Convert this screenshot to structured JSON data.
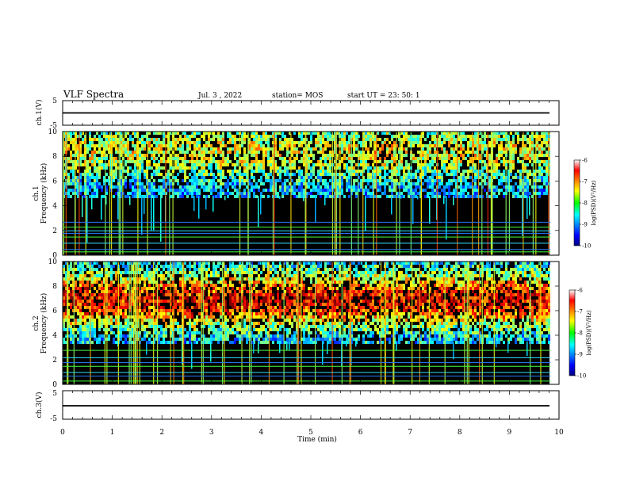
{
  "header": {
    "title": "VLF Spectra",
    "date": "Jul. 3 , 2022",
    "station": "station= MOS",
    "start": "start UT = 23: 50: 1"
  },
  "chart_data": [
    {
      "type": "line",
      "name": "ch1-waveform",
      "ylabel": "ch.1(V)",
      "ylim": [
        -5,
        5
      ],
      "yticks": [
        "5",
        "-5"
      ],
      "baseline": 0
    },
    {
      "type": "heatmap",
      "name": "ch1-spectrogram",
      "ylabel": "ch.1",
      "ylabel2": "Frequency (kHz)",
      "ylim": [
        0,
        10
      ],
      "yticks": [
        "0",
        "2",
        "4",
        "6",
        "8",
        "10"
      ],
      "colorbar": {
        "label": "log(PSD)(V²/Hz)",
        "ticks": [
          "-6",
          "-7",
          "-8",
          "-9",
          "-10"
        ],
        "range": [
          -10,
          -6
        ]
      },
      "dominant_band_khz": [
        5,
        10
      ],
      "narrowband_lines_khz": [
        0.3,
        0.5,
        1.0,
        1.5,
        1.8,
        2.0,
        2.3,
        2.7
      ]
    },
    {
      "type": "heatmap",
      "name": "ch2-spectrogram",
      "ylabel": "ch.2",
      "ylabel2": "Frequency (kHz)",
      "ylim": [
        0,
        10
      ],
      "yticks": [
        "0",
        "2",
        "4",
        "6",
        "8",
        "10"
      ],
      "colorbar": {
        "label": "log(PSD)(V²/Hz)",
        "ticks": [
          "-6",
          "-7",
          "-8",
          "-9",
          "-10"
        ],
        "range": [
          -10,
          -6
        ]
      },
      "dominant_band_khz": [
        4,
        10
      ],
      "peak_band_khz": [
        6,
        8
      ],
      "narrowband_lines_khz": [
        0.3,
        0.7,
        1.0,
        1.5,
        1.8,
        2.2,
        2.8
      ]
    },
    {
      "type": "line",
      "name": "ch3-waveform",
      "ylabel": "ch.3(V)",
      "ylim": [
        -5,
        5
      ],
      "yticks": [
        "5",
        "-5"
      ],
      "baseline": 0
    }
  ],
  "xaxis": {
    "label": "Time (min)",
    "xlim": [
      0,
      10
    ],
    "ticks": [
      "0",
      "1",
      "2",
      "3",
      "4",
      "5",
      "6",
      "7",
      "8",
      "9",
      "10"
    ],
    "data_end": 9.83
  }
}
